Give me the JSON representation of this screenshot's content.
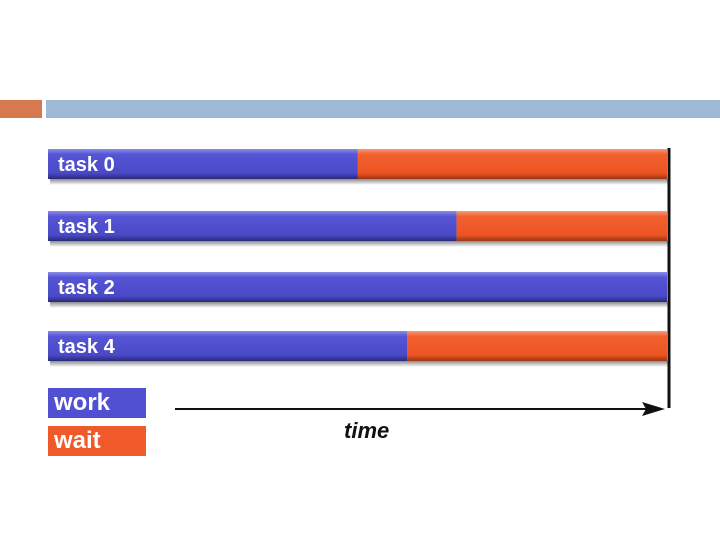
{
  "colors": {
    "accent_left": "#d7794f",
    "accent_right": "#9db9d3",
    "work": "#5050d0",
    "wait": "#f05a2a"
  },
  "chart_data": {
    "type": "bar",
    "orientation": "horizontal",
    "stacked": true,
    "categories": [
      "task 0",
      "task 1",
      "task 2",
      "task 4"
    ],
    "series": [
      {
        "name": "work",
        "values": [
          0.5,
          0.66,
          1.0,
          0.58
        ]
      },
      {
        "name": "wait",
        "values": [
          0.5,
          0.34,
          0.0,
          0.42
        ]
      }
    ],
    "xlabel": "time",
    "ylabel": "",
    "xlim": [
      0,
      1
    ],
    "legend": "bottom-left",
    "grid": false
  },
  "legend": {
    "work_label": "work",
    "wait_label": "wait"
  },
  "axis": {
    "time_label": "time"
  }
}
